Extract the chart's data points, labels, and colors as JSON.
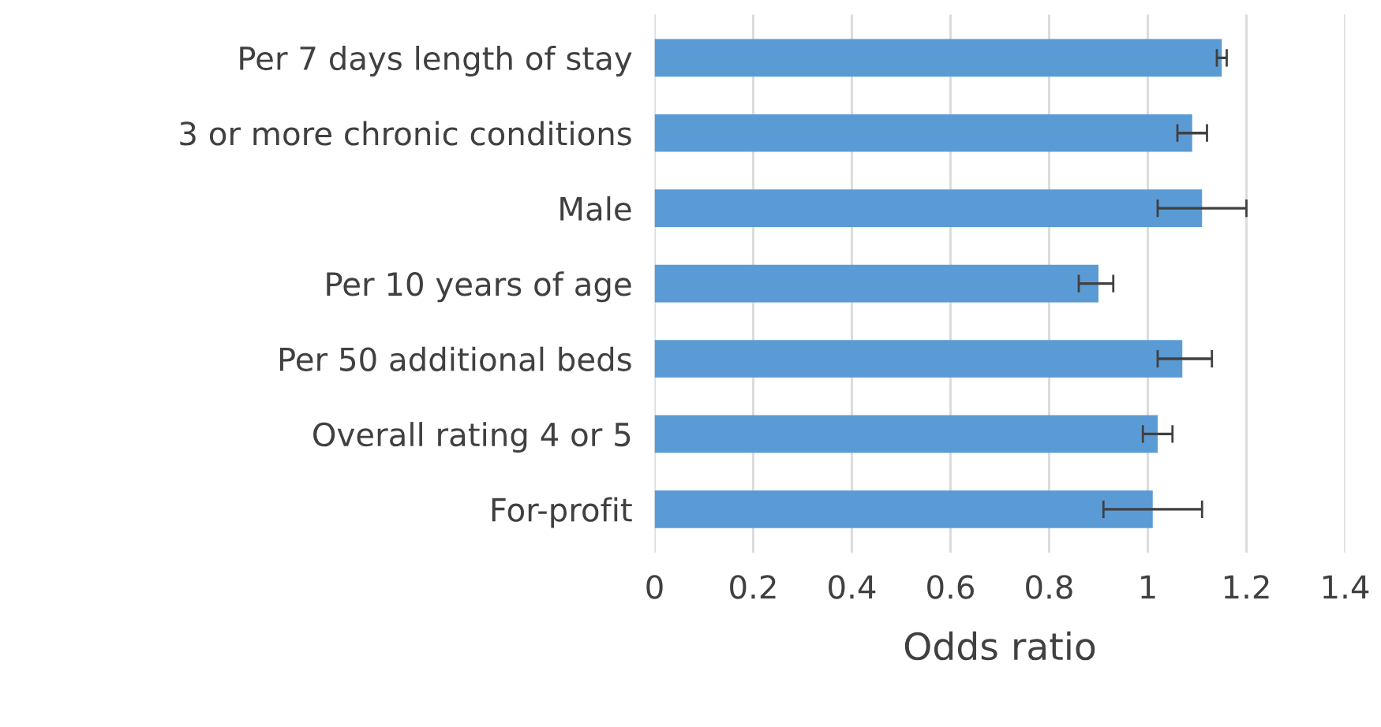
{
  "chart_data": {
    "type": "bar",
    "orientation": "horizontal",
    "xlabel": "Odds ratio",
    "categories": [
      "Per 7 days length of stay",
      "3 or more chronic conditions",
      "Male",
      "Per 10 years of age",
      "Per 50 additional beds",
      "Overall rating 4 or 5",
      "For-profit"
    ],
    "values": [
      1.15,
      1.09,
      1.11,
      0.9,
      1.07,
      1.02,
      1.01
    ],
    "errors": [
      [
        1.14,
        1.16
      ],
      [
        1.06,
        1.12
      ],
      [
        1.02,
        1.2
      ],
      [
        0.86,
        0.93
      ],
      [
        1.02,
        1.13
      ],
      [
        0.99,
        1.05
      ],
      [
        0.91,
        1.11
      ]
    ],
    "color": "#5b9bd5",
    "xlim": [
      0,
      1.4
    ],
    "xticks": [
      0,
      0.2,
      0.4,
      0.6,
      0.8,
      1,
      1.2,
      1.4
    ],
    "grid": "x"
  }
}
